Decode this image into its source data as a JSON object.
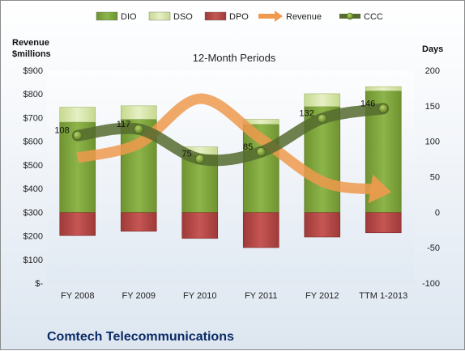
{
  "chart_data": {
    "type": "bar",
    "title": "Comtech Telecommunications",
    "subtitle": "12-Month Periods",
    "left_axis_title_line1": "Revenue",
    "left_axis_title_line2": "$millions",
    "right_axis_title": "Days",
    "left_axis": {
      "min": 0,
      "max": 900,
      "step": 100,
      "tick_labels": [
        "$-",
        "$100",
        "$200",
        "$300",
        "$400",
        "$500",
        "$600",
        "$700",
        "$800",
        "$900"
      ]
    },
    "right_axis": {
      "min": -100,
      "max": 200,
      "step": 50,
      "tick_labels": [
        "-100",
        "-50",
        "0",
        "50",
        "100",
        "150",
        "200"
      ]
    },
    "categories": [
      "FY 2008",
      "FY 2009",
      "FY 2010",
      "FY 2011",
      "FY 2012",
      "TTM 1-2013"
    ],
    "series": [
      {
        "name": "DIO",
        "axis": "right",
        "kind": "stacked-positive",
        "color": "#7fa33a",
        "values": [
          127,
          131,
          81,
          124,
          149,
          171
        ]
      },
      {
        "name": "DSO",
        "axis": "right",
        "kind": "stacked-positive",
        "color": "#d7e6a8",
        "values": [
          21,
          19,
          11,
          7,
          18,
          6
        ]
      },
      {
        "name": "DPO",
        "axis": "right",
        "kind": "negative",
        "color": "#b94a48",
        "values": [
          -33,
          -27,
          -37,
          -50,
          -35,
          -29
        ]
      },
      {
        "name": "Revenue",
        "axis": "left",
        "kind": "arrow-line",
        "color": "#ef9a4e",
        "values": [
          530,
          590,
          780,
          610,
          430,
          390
        ]
      },
      {
        "name": "CCC",
        "axis": "right",
        "kind": "line",
        "color": "#556b2f",
        "values": [
          108,
          117,
          75,
          85,
          132,
          146
        ]
      }
    ],
    "ccc_labels": [
      "108",
      "117",
      "75",
      "85",
      "132",
      "146"
    ],
    "legend": {
      "position": "top"
    },
    "grid": false
  }
}
